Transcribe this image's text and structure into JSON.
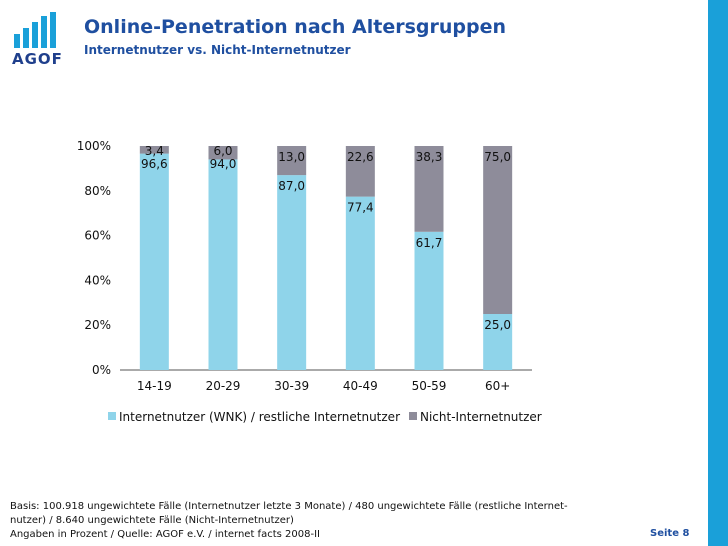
{
  "header": {
    "logo_text": "AGOF",
    "title": "Online-Penetration nach Altersgruppen",
    "subtitle": "Internetnutzer vs. Nicht-Internetnutzer"
  },
  "colors": {
    "internet_users": "#8fd4ea",
    "non_users": "#8e8c9a",
    "brand_blue": "#1f4fa0",
    "sidebar_blue": "#1aa0d9"
  },
  "chart_data": {
    "type": "bar",
    "stacked": true,
    "categories": [
      "14-19",
      "20-29",
      "30-39",
      "40-49",
      "50-59",
      "60+"
    ],
    "series": [
      {
        "name": "Internetnutzer (WNK) / restliche Internetnutzer",
        "values": [
          96.6,
          94.0,
          87.0,
          77.4,
          61.7,
          25.0
        ],
        "labels": [
          "96,6",
          "94,0",
          "87,0",
          "77,4",
          "61,7",
          "25,0"
        ]
      },
      {
        "name": "Nicht-Internetnutzer",
        "values": [
          3.4,
          6.0,
          13.0,
          22.6,
          38.3,
          75.0
        ],
        "labels": [
          "3,4",
          "6,0",
          "13,0",
          "22,6",
          "38,3",
          "75,0"
        ]
      }
    ],
    "yticks": [
      "0%",
      "20%",
      "40%",
      "60%",
      "80%",
      "100%"
    ],
    "ylim": [
      0,
      100
    ],
    "legend_position": "bottom"
  },
  "footer": {
    "line1": "Basis: 100.918 ungewichtete Fälle (Internetnutzer letzte 3 Monate) / 480 ungewichtete Fälle (restliche Internet-",
    "line2": "nutzer) / 8.640 ungewichtete Fälle (Nicht-Internetnutzer)",
    "line3": "Angaben in Prozent / Quelle: AGOF e.V. / internet facts 2008-II",
    "page": "Seite 8"
  }
}
